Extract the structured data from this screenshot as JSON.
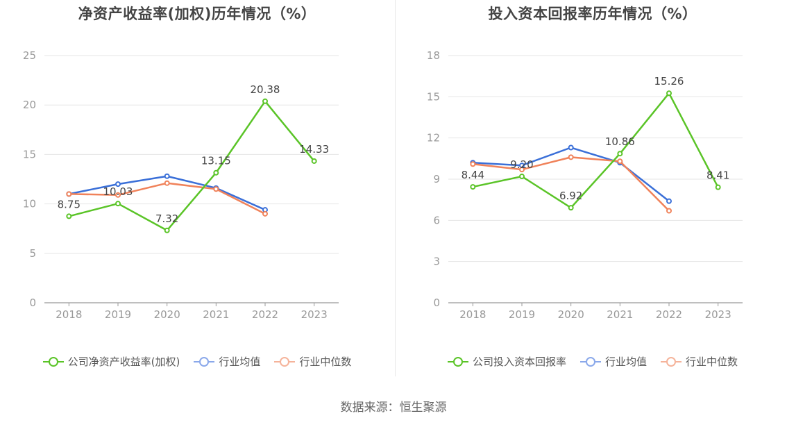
{
  "colors": {
    "company": "#5ac427",
    "industry_avg": "#3a6fd8",
    "industry_median": "#f0825a",
    "legend_avg": "#8aa8ea",
    "legend_median": "#f5b39a",
    "grid": "#e6e6e6",
    "axis": "#999999",
    "tick_text": "#999999",
    "label_text": "#444444"
  },
  "footer": {
    "source": "数据来源：恒生聚源"
  },
  "chart_data": [
    {
      "type": "line",
      "title": "净资产收益率(加权)历年情况（%）",
      "x": [
        "2018",
        "2019",
        "2020",
        "2021",
        "2022",
        "2023"
      ],
      "ylim": [
        0,
        25
      ],
      "yticks": [
        0,
        5,
        10,
        15,
        20,
        25
      ],
      "grid": true,
      "legend_position": "bottom",
      "series": [
        {
          "name": "公司净资产收益率(加权)",
          "key": "company",
          "values": [
            8.75,
            10.03,
            7.32,
            13.15,
            20.38,
            14.33
          ],
          "labels": [
            "8.75",
            "10.03",
            "7.32",
            "13.15",
            "20.38",
            "14.33"
          ]
        },
        {
          "name": "行业均值",
          "key": "industry_avg",
          "values": [
            11.0,
            12.0,
            12.8,
            11.6,
            9.4,
            null
          ]
        },
        {
          "name": "行业中位数",
          "key": "industry_median",
          "values": [
            11.0,
            10.9,
            12.1,
            11.5,
            9.0,
            null
          ]
        }
      ]
    },
    {
      "type": "line",
      "title": "投入资本回报率历年情况（%）",
      "x": [
        "2018",
        "2019",
        "2020",
        "2021",
        "2022",
        "2023"
      ],
      "ylim": [
        0,
        18
      ],
      "yticks": [
        0,
        3,
        6,
        9,
        12,
        15,
        18
      ],
      "grid": true,
      "legend_position": "bottom",
      "series": [
        {
          "name": "公司投入资本回报率",
          "key": "company",
          "values": [
            8.44,
            9.2,
            6.92,
            10.86,
            15.26,
            8.41
          ],
          "labels": [
            "8.44",
            "9.20",
            "6.92",
            "10.86",
            "15.26",
            "8.41"
          ]
        },
        {
          "name": "行业均值",
          "key": "industry_avg",
          "values": [
            10.2,
            10.0,
            11.3,
            10.2,
            7.4,
            null
          ]
        },
        {
          "name": "行业中位数",
          "key": "industry_median",
          "values": [
            10.1,
            9.7,
            10.6,
            10.3,
            6.7,
            null
          ]
        }
      ]
    }
  ]
}
